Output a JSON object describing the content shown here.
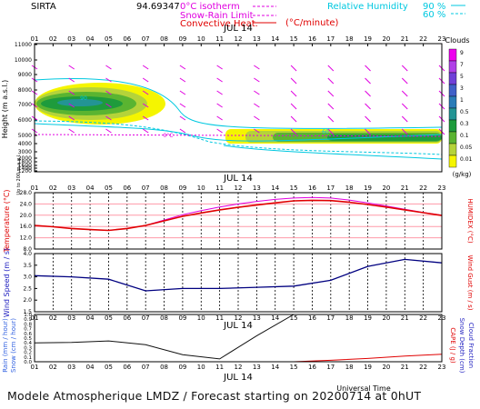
{
  "header": {
    "station": "SIRTA",
    "coords": "94.69347",
    "isotherm_label": "0°C isotherm",
    "snow_rain_label": "Snow-Rain Limit",
    "convective_label": "Convective Heat.",
    "convective_unit": "(°C/minute)",
    "rh_label": "Relative Humidity",
    "rh_value_1": "90 %",
    "rh_value_2": "60 %"
  },
  "footer": "Modele Atmospherique LMDZ / Forecast starting on 20200714 at 0hUT",
  "colors": {
    "magenta": "#e000e0",
    "cyan": "#00c8e0",
    "red": "#e00000",
    "blue": "#2020c0",
    "navy": "#000080",
    "pink": "#ff9aa8"
  },
  "chart_data": [
    {
      "type": "heatmap",
      "title": "Clouds",
      "date_label": "JUL 14",
      "x_ticks": [
        "01",
        "02",
        "03",
        "04",
        "05",
        "06",
        "07",
        "08",
        "09",
        "10",
        "11",
        "12",
        "13",
        "14",
        "15",
        "16",
        "17",
        "18",
        "19",
        "20",
        "21",
        "22",
        "23"
      ],
      "ylabel": "Height (m a.s.l.)",
      "ylabel_small": "Up to 200 m a.g.l.",
      "y_ticks": [
        "11000",
        "10000",
        "9000",
        "8000",
        "7000",
        "6000",
        "5000",
        "4000",
        "3000",
        "2000",
        "1800",
        "1600",
        "1400",
        "1200",
        "1000",
        "800",
        "600",
        "400",
        "200",
        "100"
      ],
      "colorbar_title": "Clouds",
      "colorbar_unit": "(g/kg)",
      "colorbar_levels": [
        "9",
        "7",
        "5",
        "3",
        "1",
        "0.5",
        "0.3",
        "0.1",
        "0.05",
        "0.01"
      ],
      "colorbar_colors": [
        "#ee00ee",
        "#b040e8",
        "#7040d8",
        "#4060c8",
        "#2a7cb8",
        "#239494",
        "#1e9b3c",
        "#5ab431",
        "#b5d33a",
        "#f5f500"
      ],
      "isotherm_label": "0°C",
      "contour_labels": [
        "90",
        "60"
      ]
    },
    {
      "type": "line",
      "date_label": "JUL 14",
      "x_ticks": [
        "01",
        "02",
        "03",
        "04",
        "05",
        "06",
        "07",
        "08",
        "09",
        "10",
        "11",
        "12",
        "13",
        "14",
        "15",
        "16",
        "17",
        "18",
        "19",
        "20",
        "21",
        "22",
        "23"
      ],
      "ylabel": "Temperature (°C)",
      "ylabel_right": "HUMIDEX (°C)",
      "y_ticks": [
        "28.0",
        "24.0",
        "20.0",
        "16.0",
        "12.0",
        "8.0"
      ],
      "ylim": [
        8,
        28
      ],
      "x": [
        1,
        2,
        3,
        4,
        5,
        6,
        7,
        8,
        9,
        10,
        11,
        12,
        13,
        14,
        15,
        16,
        17,
        18,
        19,
        20,
        21,
        22,
        23
      ],
      "series": [
        {
          "values": [
            16.4,
            15.9,
            15.3,
            14.9,
            14.6,
            15.3,
            16.4,
            18.0,
            19.6,
            20.8,
            21.9,
            22.8,
            23.6,
            24.4,
            25.1,
            25.3,
            25.2,
            24.6,
            23.8,
            22.9,
            21.9,
            20.9,
            19.9
          ]
        },
        {
          "values": [
            16.4,
            15.9,
            15.3,
            14.9,
            14.6,
            15.3,
            16.4,
            18.3,
            20.2,
            21.6,
            22.9,
            24.0,
            24.9,
            25.6,
            26.1,
            26.3,
            26.1,
            25.4,
            24.4,
            23.3,
            22.1,
            21.0,
            20.0
          ]
        }
      ]
    },
    {
      "type": "line",
      "ylabel": "Wind Speed (m / s)",
      "ylabel_right": "Wind Gust (m / s)",
      "y_ticks": [
        "4.0",
        "3.5",
        "3.0",
        "2.5",
        "2.0",
        "1.5"
      ],
      "ylim": [
        1.5,
        4.0
      ],
      "x": [
        1,
        3,
        5,
        7,
        9,
        11,
        13,
        15,
        17,
        19,
        21,
        23
      ],
      "series": [
        {
          "values": [
            3.05,
            3.0,
            2.9,
            2.4,
            2.5,
            2.5,
            2.55,
            2.6,
            2.85,
            3.45,
            3.75,
            3.6
          ]
        }
      ]
    },
    {
      "type": "line",
      "date_label": "JUL 14",
      "bottom_date_label": "JUL 14",
      "xlabel": "Universal Time",
      "x_ticks": [
        "01",
        "02",
        "03",
        "04",
        "05",
        "06",
        "07",
        "08",
        "09",
        "10",
        "11",
        "12",
        "13",
        "14",
        "15",
        "16",
        "17",
        "18",
        "19",
        "20",
        "21",
        "22",
        "23"
      ],
      "ylabel_left": "Rain (mm / hour)",
      "ylabel_left2": "Snow (cm / hour)",
      "ylabel_right": "CAPE (J / g)",
      "ylabel_right2": "Snow Depth (cm)",
      "ylabel_right3": "Cloud Fraction",
      "y_ticks": [
        "1.0",
        "0.9",
        "0.8",
        "0.7",
        "0.6",
        "0.5",
        "0.4",
        "0.3",
        "0.2",
        "0.1",
        "0.0"
      ],
      "ylim": [
        0,
        1
      ],
      "x": [
        1,
        3,
        5,
        7,
        9,
        11,
        13,
        15,
        17,
        19,
        21,
        23
      ],
      "series": [
        {
          "values": [
            0.4,
            0.41,
            0.44,
            0.36,
            0.15,
            0.06,
            0.55,
            1.0,
            1.0,
            1.0,
            1.0,
            1.0
          ]
        },
        {
          "values": [
            0.0,
            0.0,
            0.0,
            0.0,
            0.0,
            0.0,
            0.0,
            0.0,
            0.03,
            0.07,
            0.12,
            0.16
          ]
        }
      ]
    }
  ]
}
